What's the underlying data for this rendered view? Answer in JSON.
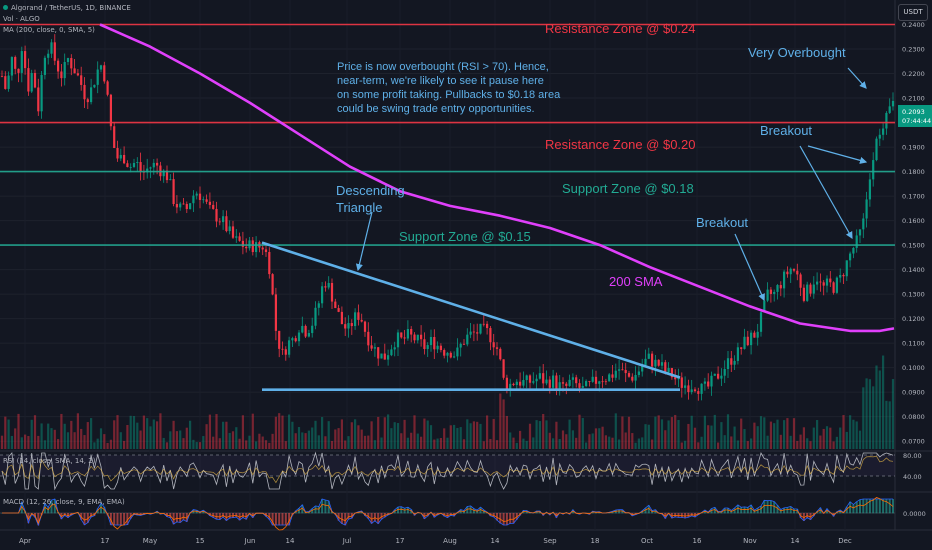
{
  "header": {
    "symbol_line": "Algorand / TetherUS, 1D, BINANCE",
    "vol_line": "Vol · ALGO",
    "ma_line": "MA (200, close, 0, SMA, 5)",
    "unit_button": "USDT"
  },
  "price_badge": {
    "price": "0.2093",
    "countdown": "07:44:44"
  },
  "annotations": {
    "resistance_top": "Resistance Zone @ $0.24",
    "resistance_mid": "Resistance Zone @ $0.20",
    "support_018": "Support Zone @ $0.18",
    "support_015": "Support Zone @ $0.15",
    "descending_1": "Descending",
    "descending_2": "Triangle",
    "sma_label": "200 SMA",
    "very_overbought": "Very Overbought",
    "breakout_1": "Breakout",
    "breakout_2": "Breakout",
    "note": [
      "Price is now overbought (RSI > 70). Hence,",
      "near-term, we're likely to see it pause here",
      "on some profit taking. Pullbacks to $0.18 area",
      "could be swing trade entry opportunities."
    ]
  },
  "rsi_panel": {
    "label": "RSI (14, close, SMA, 14, 2)",
    "ticks": [
      "80.00",
      "40.00"
    ]
  },
  "macd_panel": {
    "label": "MACD (12, 26, close, 9, EMA, EMA)",
    "ticks": [
      "0.0000"
    ]
  },
  "colors": {
    "background": "#131722",
    "up": "#089981",
    "down": "#f23645",
    "resistance": "#f23645",
    "support": "#22ab94",
    "triangle": "#5fb0e8",
    "sma": "#e040fb",
    "text_light": "#d1d4dc"
  },
  "chart_data": {
    "type": "line",
    "title": "Algorand / TetherUS, 1D, BINANCE",
    "y_ticks": [
      "0.2400",
      "0.2300",
      "0.2200",
      "0.2100",
      "0.2000",
      "0.1900",
      "0.1800",
      "0.1700",
      "0.1600",
      "0.1500",
      "0.1400",
      "0.1300",
      "0.1200",
      "0.1100",
      "0.1000",
      "0.0900",
      "0.0800",
      "0.0700"
    ],
    "x_ticks": [
      "Apr",
      "17",
      "May",
      "15",
      "Jun",
      "14",
      "Jul",
      "17",
      "Aug",
      "14",
      "Sep",
      "18",
      "Oct",
      "16",
      "Nov",
      "14",
      "Dec"
    ],
    "ylim": [
      0.066,
      0.25
    ],
    "horizontal_levels": [
      {
        "value": 0.24,
        "kind": "resistance"
      },
      {
        "value": 0.2,
        "kind": "resistance"
      },
      {
        "value": 0.18,
        "kind": "support"
      },
      {
        "value": 0.15,
        "kind": "support"
      }
    ],
    "price_path": [
      [
        0,
        0.222
      ],
      [
        6,
        0.213
      ],
      [
        12,
        0.226
      ],
      [
        17,
        0.218
      ],
      [
        22,
        0.232
      ],
      [
        28,
        0.214
      ],
      [
        33,
        0.222
      ],
      [
        38,
        0.205
      ],
      [
        44,
        0.228
      ],
      [
        50,
        0.232
      ],
      [
        56,
        0.224
      ],
      [
        62,
        0.219
      ],
      [
        68,
        0.226
      ],
      [
        74,
        0.222
      ],
      [
        80,
        0.217
      ],
      [
        86,
        0.21
      ],
      [
        92,
        0.214
      ],
      [
        97,
        0.221
      ],
      [
        102,
        0.224
      ],
      [
        106,
        0.216
      ],
      [
        110,
        0.2
      ],
      [
        114,
        0.19
      ],
      [
        118,
        0.185
      ],
      [
        124,
        0.186
      ],
      [
        130,
        0.182
      ],
      [
        136,
        0.184
      ],
      [
        142,
        0.179
      ],
      [
        150,
        0.182
      ],
      [
        156,
        0.183
      ],
      [
        162,
        0.18
      ],
      [
        168,
        0.178
      ],
      [
        174,
        0.168
      ],
      [
        180,
        0.165
      ],
      [
        186,
        0.164
      ],
      [
        192,
        0.17
      ],
      [
        198,
        0.172
      ],
      [
        204,
        0.168
      ],
      [
        210,
        0.164
      ],
      [
        216,
        0.162
      ],
      [
        222,
        0.16
      ],
      [
        228,
        0.156
      ],
      [
        234,
        0.152
      ],
      [
        240,
        0.151
      ],
      [
        246,
        0.149
      ],
      [
        252,
        0.15
      ],
      [
        258,
        0.149
      ],
      [
        264,
        0.15
      ],
      [
        270,
        0.14
      ],
      [
        276,
        0.115
      ],
      [
        282,
        0.105
      ],
      [
        288,
        0.11
      ],
      [
        294,
        0.112
      ],
      [
        300,
        0.118
      ],
      [
        306,
        0.115
      ],
      [
        312,
        0.118
      ],
      [
        318,
        0.125
      ],
      [
        324,
        0.136
      ],
      [
        330,
        0.132
      ],
      [
        336,
        0.124
      ],
      [
        342,
        0.118
      ],
      [
        348,
        0.115
      ],
      [
        354,
        0.12
      ],
      [
        360,
        0.122
      ],
      [
        366,
        0.114
      ],
      [
        372,
        0.109
      ],
      [
        378,
        0.106
      ],
      [
        384,
        0.104
      ],
      [
        390,
        0.108
      ],
      [
        396,
        0.112
      ],
      [
        402,
        0.111
      ],
      [
        408,
        0.113
      ],
      [
        414,
        0.112
      ],
      [
        420,
        0.11
      ],
      [
        426,
        0.108
      ],
      [
        432,
        0.111
      ],
      [
        438,
        0.109
      ],
      [
        444,
        0.107
      ],
      [
        450,
        0.107
      ],
      [
        456,
        0.105
      ],
      [
        462,
        0.11
      ],
      [
        468,
        0.113
      ],
      [
        474,
        0.114
      ],
      [
        480,
        0.115
      ],
      [
        486,
        0.115
      ],
      [
        492,
        0.112
      ],
      [
        498,
        0.107
      ],
      [
        504,
        0.094
      ],
      [
        510,
        0.093
      ],
      [
        516,
        0.095
      ],
      [
        522,
        0.094
      ],
      [
        528,
        0.094
      ],
      [
        534,
        0.095
      ],
      [
        540,
        0.096
      ],
      [
        546,
        0.094
      ],
      [
        552,
        0.095
      ],
      [
        558,
        0.093
      ],
      [
        564,
        0.091
      ],
      [
        570,
        0.094
      ],
      [
        576,
        0.093
      ],
      [
        582,
        0.091
      ],
      [
        588,
        0.092
      ],
      [
        594,
        0.094
      ],
      [
        600,
        0.096
      ],
      [
        606,
        0.096
      ],
      [
        612,
        0.097
      ],
      [
        618,
        0.1
      ],
      [
        624,
        0.097
      ],
      [
        630,
        0.096
      ],
      [
        636,
        0.097
      ],
      [
        642,
        0.101
      ],
      [
        648,
        0.104
      ],
      [
        654,
        0.102
      ],
      [
        660,
        0.101
      ],
      [
        666,
        0.098
      ],
      [
        672,
        0.097
      ],
      [
        678,
        0.094
      ],
      [
        684,
        0.093
      ],
      [
        690,
        0.093
      ],
      [
        696,
        0.093
      ],
      [
        702,
        0.091
      ],
      [
        708,
        0.092
      ],
      [
        714,
        0.095
      ],
      [
        720,
        0.098
      ],
      [
        726,
        0.101
      ],
      [
        732,
        0.104
      ],
      [
        738,
        0.106
      ],
      [
        744,
        0.11
      ],
      [
        750,
        0.112
      ],
      [
        756,
        0.114
      ],
      [
        762,
        0.121
      ],
      [
        768,
        0.13
      ],
      [
        774,
        0.13
      ],
      [
        780,
        0.134
      ],
      [
        786,
        0.138
      ],
      [
        792,
        0.141
      ],
      [
        798,
        0.137
      ],
      [
        804,
        0.13
      ],
      [
        810,
        0.132
      ],
      [
        816,
        0.138
      ],
      [
        822,
        0.132
      ],
      [
        828,
        0.134
      ],
      [
        834,
        0.133
      ],
      [
        840,
        0.136
      ],
      [
        846,
        0.142
      ],
      [
        852,
        0.148
      ],
      [
        858,
        0.152
      ],
      [
        864,
        0.16
      ],
      [
        870,
        0.178
      ],
      [
        876,
        0.196
      ],
      [
        882,
        0.193
      ],
      [
        888,
        0.204
      ],
      [
        894,
        0.209
      ]
    ],
    "sma_200": [
      [
        100,
        0.24
      ],
      [
        150,
        0.231
      ],
      [
        200,
        0.22
      ],
      [
        250,
        0.208
      ],
      [
        300,
        0.195
      ],
      [
        350,
        0.182
      ],
      [
        400,
        0.172
      ],
      [
        450,
        0.166
      ],
      [
        500,
        0.162
      ],
      [
        550,
        0.157
      ],
      [
        600,
        0.15
      ],
      [
        650,
        0.141
      ],
      [
        700,
        0.133
      ],
      [
        750,
        0.125
      ],
      [
        800,
        0.118
      ],
      [
        850,
        0.115
      ],
      [
        880,
        0.115
      ],
      [
        894,
        0.116
      ]
    ],
    "triangle": {
      "upper": [
        [
          262,
          0.151
        ],
        [
          680,
          0.096
        ]
      ],
      "lower": [
        [
          262,
          0.091
        ],
        [
          680,
          0.091
        ]
      ]
    }
  }
}
